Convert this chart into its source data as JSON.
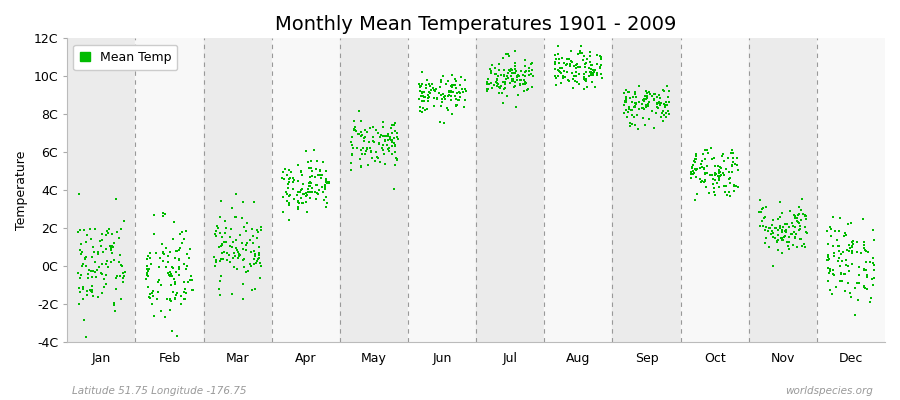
{
  "title": "Monthly Mean Temperatures 1901 - 2009",
  "ylabel": "Temperature",
  "subtitle_left": "Latitude 51.75 Longitude -176.75",
  "subtitle_right": "worldspecies.org",
  "ylim": [
    -4,
    12
  ],
  "yticks": [
    -4,
    -2,
    0,
    2,
    4,
    6,
    8,
    10,
    12
  ],
  "ytick_labels": [
    "-4C",
    "-2C",
    "0C",
    "2C",
    "4C",
    "6C",
    "8C",
    "10C",
    "12C"
  ],
  "months": [
    "Jan",
    "Feb",
    "Mar",
    "Apr",
    "May",
    "Jun",
    "Jul",
    "Aug",
    "Sep",
    "Oct",
    "Nov",
    "Dec"
  ],
  "monthly_means": [
    0.0,
    -0.5,
    1.0,
    4.3,
    6.5,
    9.0,
    10.0,
    10.3,
    8.5,
    5.0,
    2.0,
    0.3
  ],
  "monthly_stds": [
    1.4,
    1.5,
    1.0,
    0.7,
    0.7,
    0.5,
    0.55,
    0.5,
    0.55,
    0.7,
    0.7,
    1.1
  ],
  "n_years": 109,
  "dot_color": "#00bb00",
  "dot_size": 3,
  "band_colors": [
    "#ebebeb",
    "#f8f8f8"
  ],
  "dashed_line_color": "#999999",
  "title_fontsize": 14,
  "axis_label_fontsize": 9,
  "tick_label_fontsize": 9,
  "legend_fontsize": 9
}
